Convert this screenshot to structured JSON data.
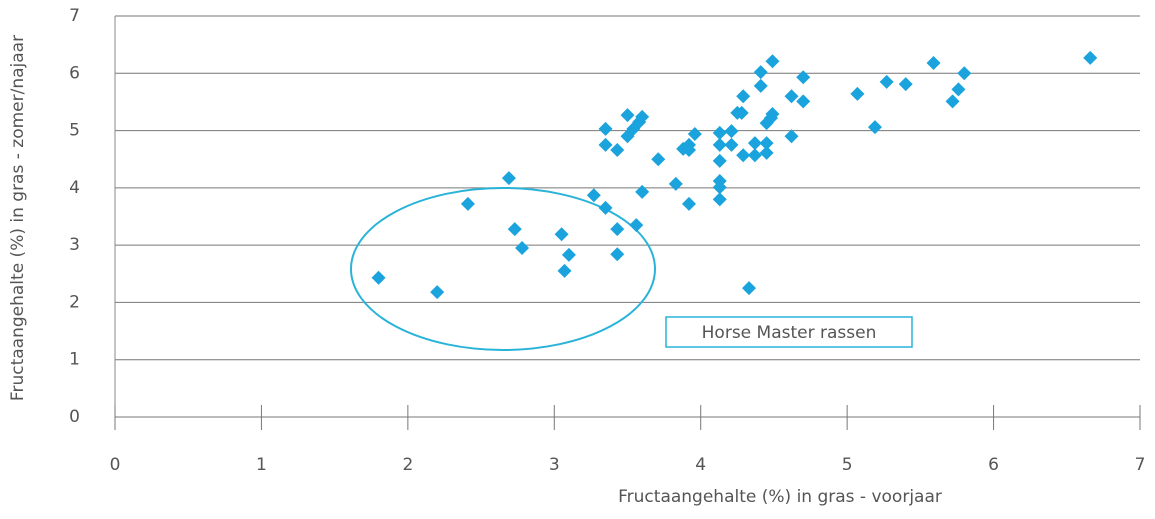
{
  "chart_data": {
    "type": "scatter",
    "xlabel": "Fructaangehalte (%) in gras - voorjaar",
    "ylabel": "Fructaangehalte (%) in gras - zomer/najaar",
    "annotation": "Horse Master rassen",
    "color": "#1aa3dc",
    "x": [
      1.8,
      2.2,
      2.41,
      2.69,
      2.73,
      2.78,
      3.05,
      3.1,
      3.07,
      3.27,
      3.35,
      3.35,
      3.35,
      3.43,
      3.43,
      3.43,
      3.5,
      3.5,
      3.54,
      3.56,
      3.58,
      3.6,
      3.6,
      3.71,
      3.83,
      3.88,
      3.92,
      3.92,
      3.92,
      3.96,
      4.13,
      4.13,
      4.13,
      4.13,
      4.13,
      4.13,
      4.21,
      4.21,
      4.25,
      4.29,
      4.28,
      4.29,
      4.33,
      4.37,
      4.37,
      4.41,
      4.41,
      4.45,
      4.45,
      4.45,
      4.48,
      4.49,
      4.49,
      4.62,
      4.62,
      4.7,
      4.7,
      5.07,
      5.19,
      5.27,
      5.4,
      5.59,
      5.72,
      5.76,
      5.8,
      6.66
    ],
    "y": [
      2.43,
      2.18,
      3.72,
      4.17,
      3.28,
      2.95,
      3.19,
      2.83,
      2.55,
      3.87,
      3.65,
      5.03,
      4.75,
      3.28,
      2.84,
      4.66,
      5.27,
      4.9,
      5.03,
      3.35,
      5.15,
      5.24,
      3.93,
      4.5,
      4.07,
      4.68,
      4.75,
      4.66,
      3.72,
      4.94,
      4.96,
      4.75,
      4.47,
      4.12,
      4.01,
      3.8,
      4.99,
      4.75,
      5.31,
      5.6,
      5.31,
      4.57,
      2.25,
      4.78,
      4.57,
      6.02,
      5.78,
      5.13,
      4.78,
      4.61,
      5.22,
      6.21,
      5.29,
      5.6,
      4.9,
      5.93,
      5.51,
      5.64,
      5.06,
      5.85,
      5.81,
      6.18,
      5.51,
      5.72,
      6.0,
      6.27
    ],
    "xlim": [
      0,
      7
    ],
    "xticks": [
      0,
      1,
      2,
      3,
      4,
      5,
      6,
      7
    ],
    "ylim": [
      0,
      7
    ],
    "yticks": [
      0,
      1,
      2,
      3,
      4,
      5,
      6,
      7
    ],
    "grid": true
  }
}
